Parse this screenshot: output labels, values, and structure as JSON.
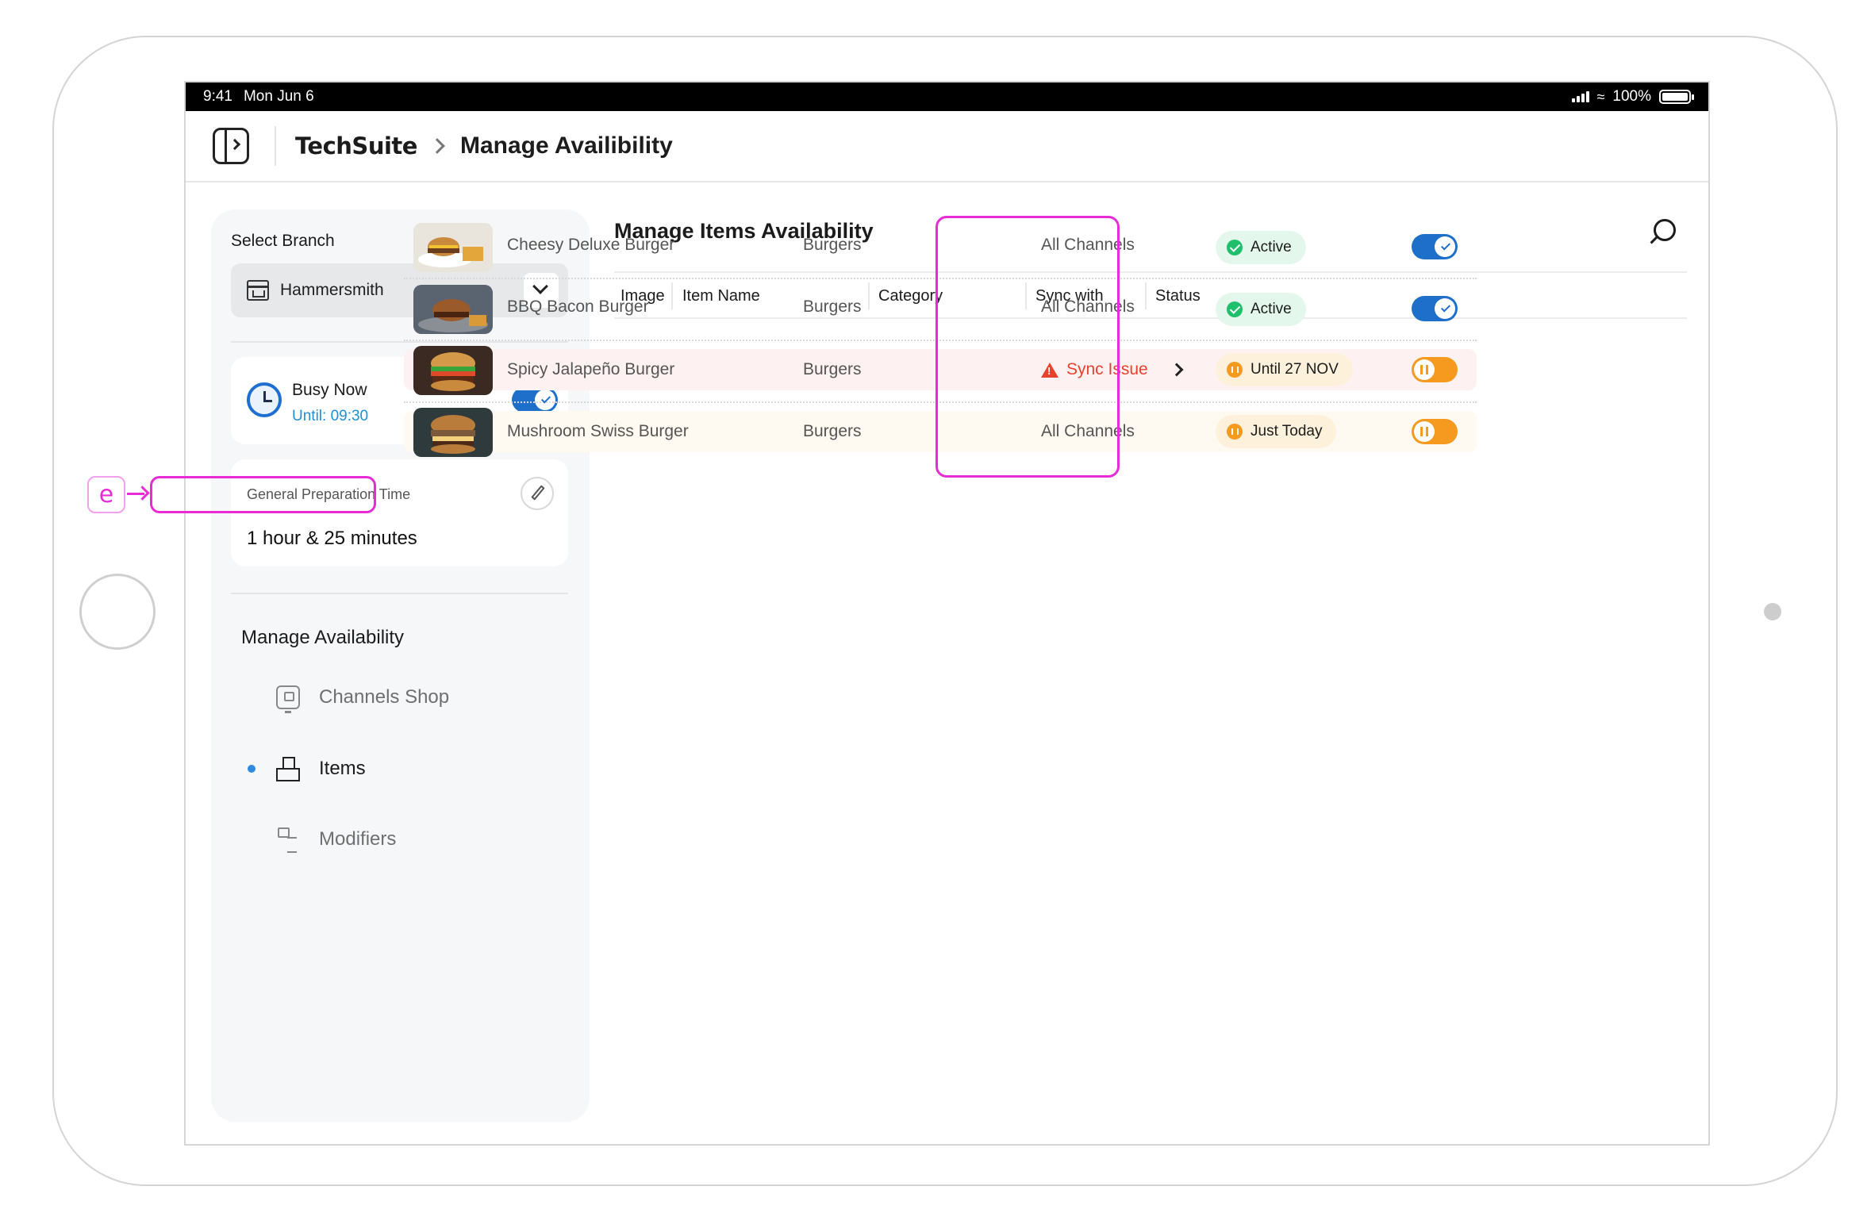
{
  "status_bar": {
    "time": "9:41",
    "date": "Mon Jun 6",
    "battery": "100%"
  },
  "header": {
    "logo": "TechSuite",
    "title": "Manage Availibility"
  },
  "sidebar": {
    "select_label": "Select Branch",
    "branch": "Hammersmith",
    "busy": {
      "title": "Busy Now",
      "until": "Until: 09:30",
      "enabled": true
    },
    "prep": {
      "label": "General Preparation Time",
      "value": "1 hour & 25 minutes"
    },
    "nav_heading": "Manage Availability",
    "nav": [
      {
        "label": "Channels Shop",
        "icon": "monitor-icon",
        "active": false
      },
      {
        "label": "Items",
        "icon": "boxes-icon",
        "active": true
      },
      {
        "label": "Modifiers",
        "icon": "tree-icon",
        "active": false
      }
    ]
  },
  "main": {
    "title": "Manage Items Availability",
    "columns": [
      "Image",
      "Item Name",
      "Category",
      "Sync with",
      "Status"
    ],
    "rows": [
      {
        "name": "Cheesy Deluxe Burger",
        "category": "Burgers",
        "sync": "All Channels",
        "status": "Active",
        "state": "active"
      },
      {
        "name": "BBQ Bacon Burger",
        "category": "Burgers",
        "sync": "All Channels",
        "status": "Active",
        "state": "active"
      },
      {
        "name": "Spicy Jalapeño Burger",
        "category": "Burgers",
        "sync": "Sync Issue",
        "status": "Until 27 NOV",
        "state": "paused"
      },
      {
        "name": "Mushroom Swiss Burger",
        "category": "Burgers",
        "sync": "All Channels",
        "status": "Just Today",
        "state": "paused"
      }
    ]
  },
  "annotation": {
    "label": "e"
  },
  "colors": {
    "accent": "#1e6fc9",
    "active": "#1fbf6c",
    "paused": "#f59a1f",
    "error": "#e8422f",
    "highlight": "#e92bd6"
  }
}
